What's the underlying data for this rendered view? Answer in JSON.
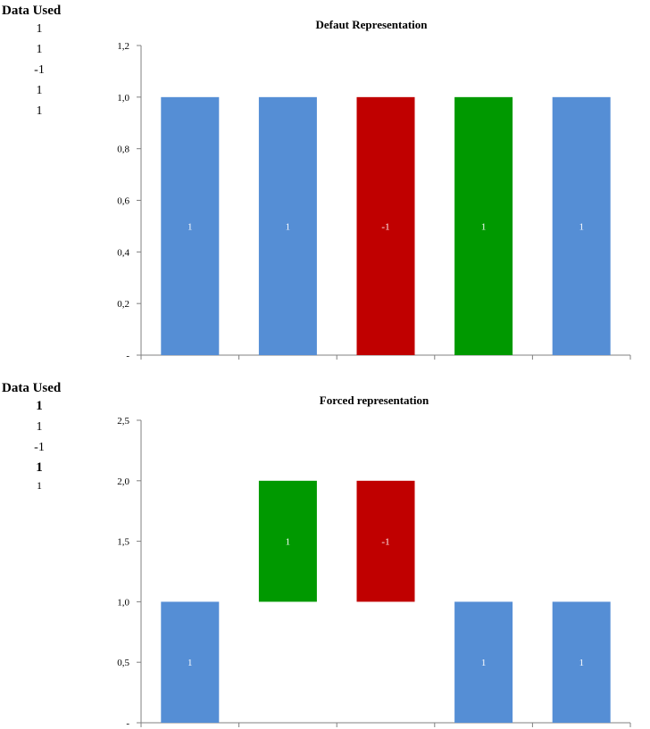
{
  "data_used_top": {
    "title": "Data Used",
    "values": [
      "1",
      "1",
      "-1",
      "1",
      "1"
    ]
  },
  "data_used_bottom": {
    "title": "Data Used",
    "values": [
      "1",
      "1",
      "-1",
      "1",
      "1"
    ]
  },
  "colors": {
    "blue": "#558ED5",
    "red": "#C00000",
    "green": "#009900"
  },
  "chart_data": [
    {
      "type": "bar",
      "title": "Defaut Representation",
      "categories": [
        "",
        "",
        "",
        "",
        ""
      ],
      "values": [
        1,
        1,
        1,
        1,
        1
      ],
      "bar_labels": [
        "1",
        "1",
        "-1",
        "1",
        "1"
      ],
      "bar_colors": [
        "#558ED5",
        "#558ED5",
        "#C00000",
        "#009900",
        "#558ED5"
      ],
      "ylim": [
        0,
        1.2
      ],
      "yticks": [
        0,
        0.2,
        0.4,
        0.6,
        0.8,
        1.0,
        1.2
      ],
      "ytick_labels": [
        "-",
        "0,2",
        "0,4",
        "0,6",
        "0,8",
        "1,0",
        "1,2"
      ],
      "grid": false,
      "xlabel": "",
      "ylabel": ""
    },
    {
      "type": "bar",
      "title": "Forced representation",
      "categories": [
        "",
        "",
        "",
        "",
        ""
      ],
      "bars": [
        {
          "bottom": 0,
          "top": 1,
          "label": "1",
          "color": "#558ED5"
        },
        {
          "bottom": 1,
          "top": 2,
          "label": "1",
          "color": "#009900"
        },
        {
          "bottom": 1,
          "top": 2,
          "label": "-1",
          "color": "#C00000"
        },
        {
          "bottom": 0,
          "top": 1,
          "label": "1",
          "color": "#558ED5"
        },
        {
          "bottom": 0,
          "top": 1,
          "label": "1",
          "color": "#558ED5"
        }
      ],
      "ylim": [
        0,
        2.5
      ],
      "yticks": [
        0,
        0.5,
        1.0,
        1.5,
        2.0,
        2.5
      ],
      "ytick_labels": [
        "-",
        "0,5",
        "1,0",
        "1,5",
        "2,0",
        "2,5"
      ],
      "grid": false,
      "xlabel": "",
      "ylabel": ""
    }
  ]
}
